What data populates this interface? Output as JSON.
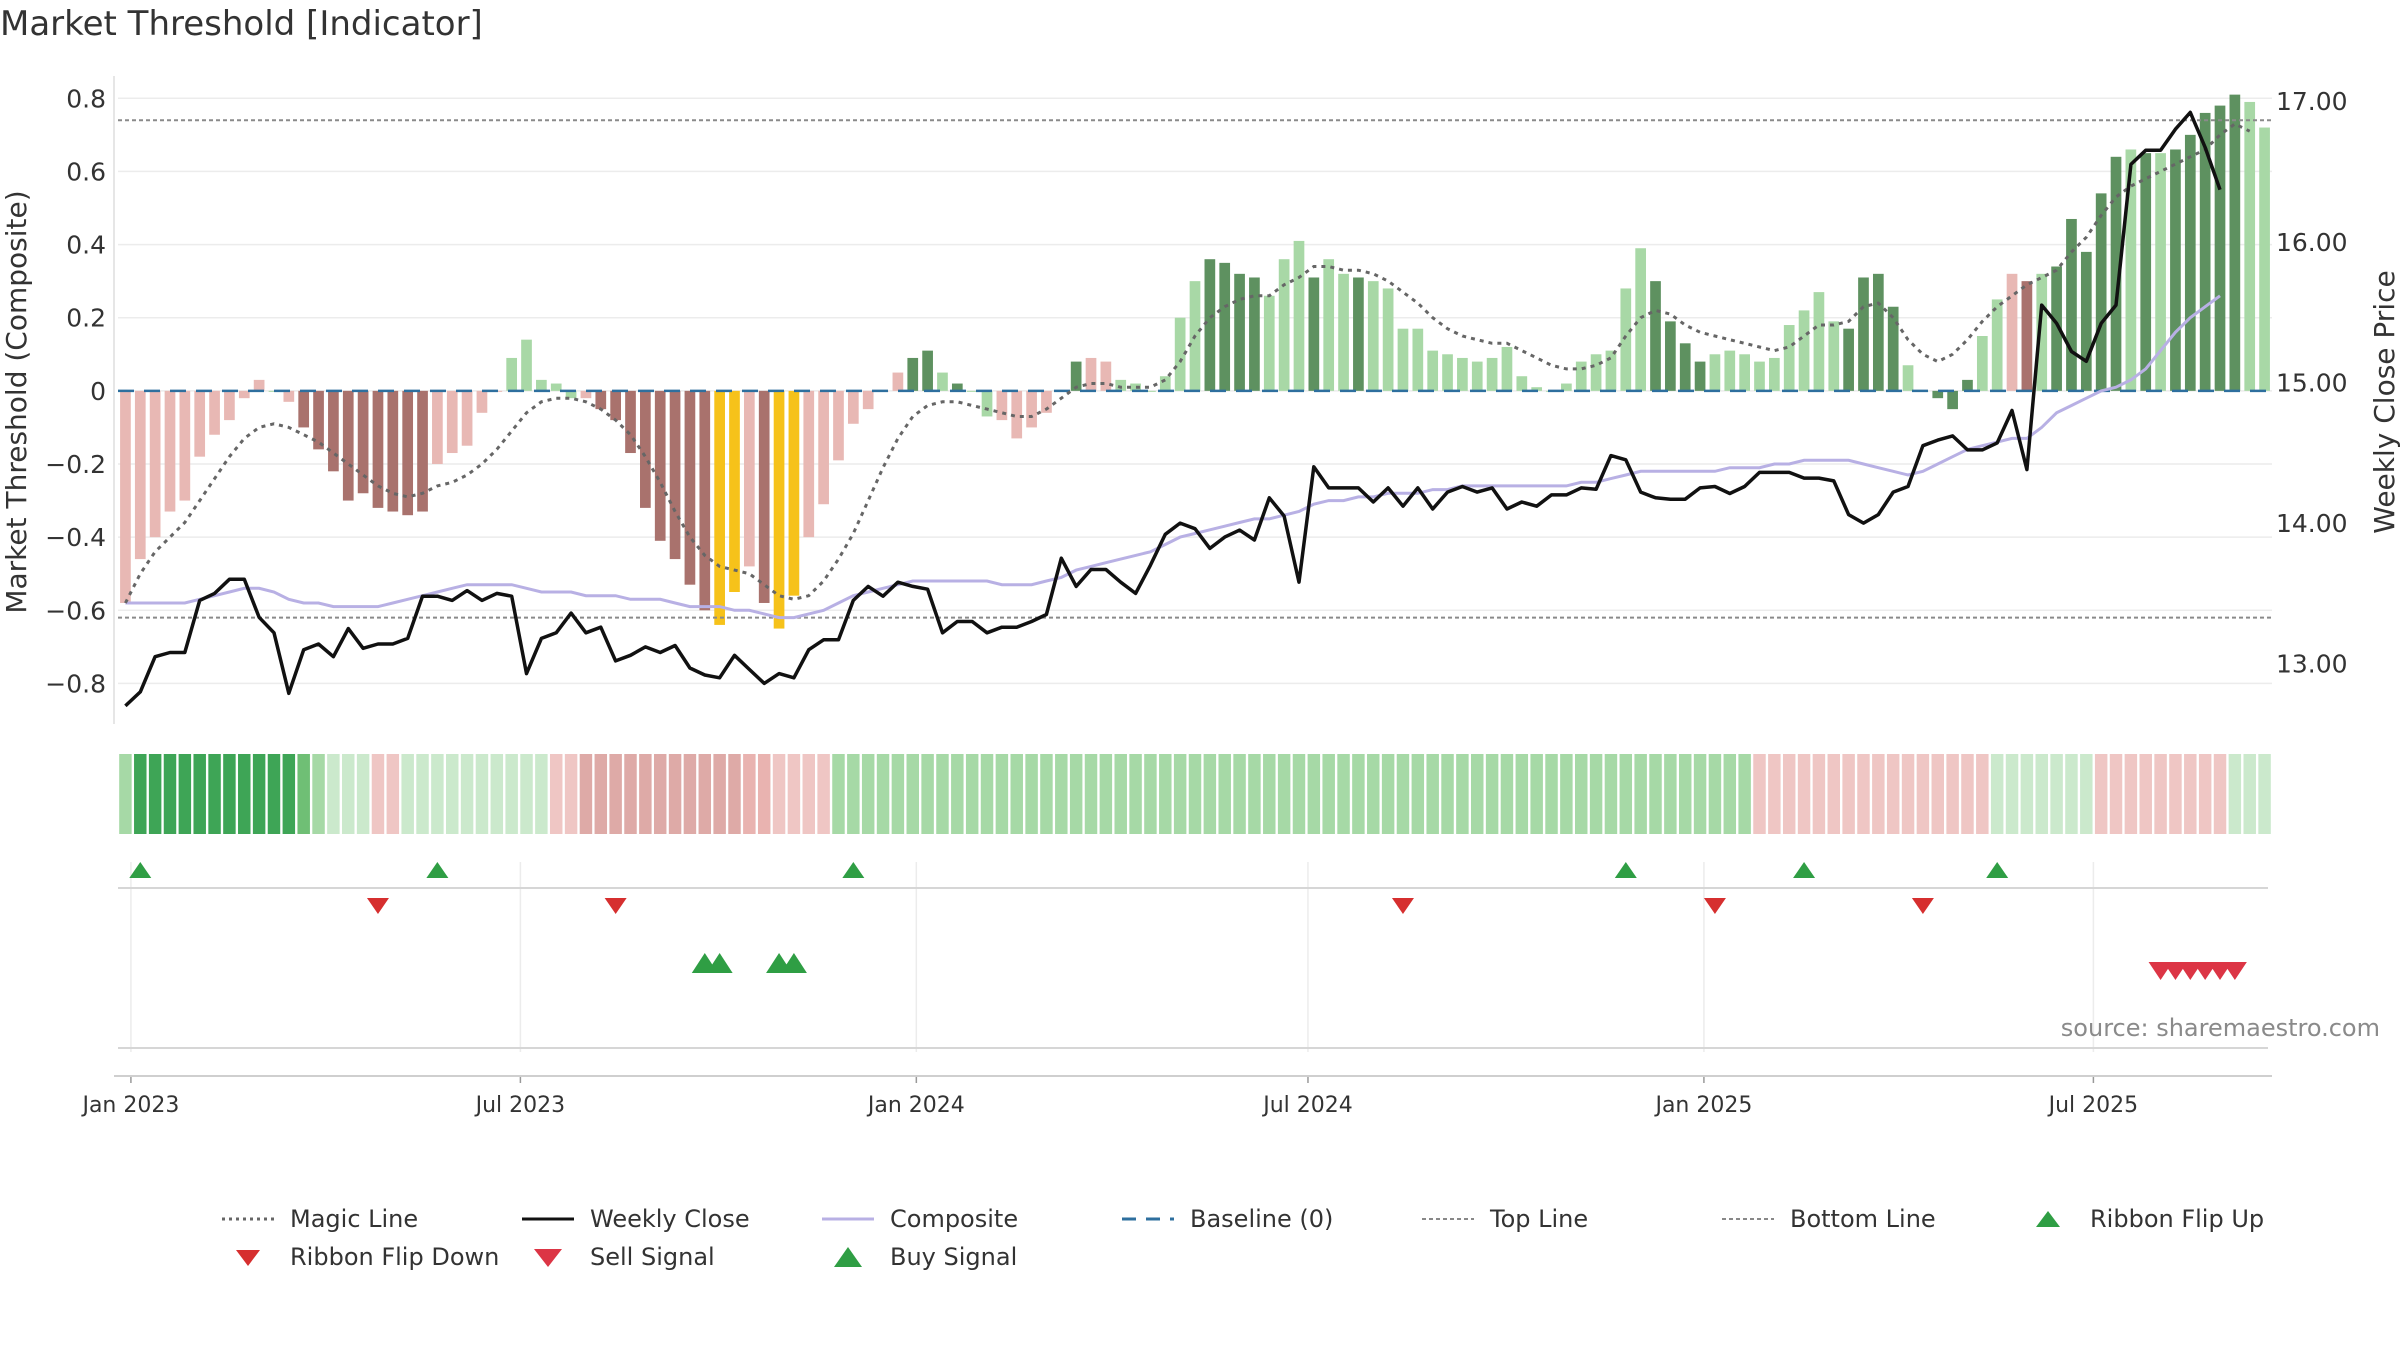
{
  "chart_data": {
    "type": "bar",
    "title": "Market Threshold [Indicator]",
    "ylabel": "Market Threshold (Composite)",
    "y2label": "Weekly Close Price",
    "ylim": [
      -0.9,
      0.85
    ],
    "y2lim": [
      12.6,
      17.15
    ],
    "yticks": [
      "0.8",
      "0.6",
      "0.4",
      "0.2",
      "0",
      "−0.2",
      "−0.4",
      "−0.6",
      "−0.8"
    ],
    "y2ticks": [
      "17.00",
      "16.00",
      "15.00",
      "14.00",
      "13.00"
    ],
    "xticks": [
      "Jan 2023",
      "Jul 2023",
      "Jan 2024",
      "Jul 2024",
      "Jan 2025",
      "Jul 2025"
    ],
    "x_start": "2022-12-26",
    "x_end": "2025-09-22",
    "top_line": 0.74,
    "bottom_line": -0.62,
    "source": "source: sharemaestro.com",
    "colors": {
      "light_green": "#a8d8a6",
      "dark_green": "#5e9160",
      "light_red": "#e8b8b4",
      "dark_red": "#a9726d",
      "gold": "#f6c21a",
      "composite": "#b8b0e4",
      "weekly_close": "#111111",
      "magic_line": "#666666",
      "baseline": "#2e6f9e",
      "buy": "#2f9e44",
      "sell": "#dc3545"
    },
    "bars": [
      -0.58,
      -0.46,
      -0.4,
      -0.33,
      -0.3,
      -0.18,
      -0.12,
      -0.08,
      -0.02,
      0.03,
      0.0,
      -0.03,
      -0.1,
      -0.16,
      -0.22,
      -0.3,
      -0.28,
      -0.32,
      -0.33,
      -0.34,
      -0.33,
      -0.2,
      -0.17,
      -0.15,
      -0.06,
      0.0,
      0.09,
      0.14,
      0.03,
      0.02,
      -0.02,
      -0.02,
      -0.05,
      -0.08,
      -0.17,
      -0.32,
      -0.41,
      -0.46,
      -0.53,
      -0.6,
      -0.64,
      -0.55,
      -0.48,
      -0.58,
      -0.65,
      -0.56,
      -0.4,
      -0.31,
      -0.19,
      -0.09,
      -0.05,
      0.0,
      0.05,
      0.09,
      0.11,
      0.05,
      0.02,
      0.0,
      -0.07,
      -0.08,
      -0.13,
      -0.1,
      -0.06,
      0.0,
      0.08,
      0.09,
      0.08,
      0.03,
      0.02,
      0.0,
      0.04,
      0.2,
      0.3,
      0.36,
      0.35,
      0.32,
      0.31,
      0.26,
      0.36,
      0.41,
      0.31,
      0.36,
      0.32,
      0.31,
      0.3,
      0.28,
      0.17,
      0.17,
      0.11,
      0.1,
      0.09,
      0.08,
      0.09,
      0.12,
      0.04,
      0.01,
      0.0,
      0.02,
      0.08,
      0.1,
      0.11,
      0.28,
      0.39,
      0.3,
      0.19,
      0.13,
      0.08,
      0.1,
      0.11,
      0.1,
      0.08,
      0.09,
      0.18,
      0.22,
      0.27,
      0.19,
      0.17,
      0.31,
      0.32,
      0.23,
      0.07,
      0.0,
      -0.02,
      -0.05,
      0.03,
      0.15,
      0.25,
      0.32,
      0.3,
      0.32,
      0.34,
      0.47,
      0.38,
      0.54,
      0.64,
      0.66,
      0.65,
      0.65,
      0.66,
      0.7,
      0.76,
      0.78,
      0.81,
      0.79,
      0.72
    ],
    "bar_colors": "RRRRRRRRRRGRNNNNNNNNNRRRRRGGGGGRNNNNNNNNYYRNYYRRRRRRRDDGDGGRRRRRDRRGGGGGGDDDDGGGDGGDGGGGGGGGGGGGGGGGGGGDDDDGGGGGGGGGDDDDGGDDDGGRNGDDDDDGDGDDDDDGGGYYYYYYY",
    "weekly_close": [
      12.7,
      12.8,
      13.05,
      13.08,
      13.08,
      13.45,
      13.5,
      13.6,
      13.6,
      13.33,
      13.22,
      12.79,
      13.1,
      13.14,
      13.05,
      13.25,
      13.11,
      13.14,
      13.14,
      13.18,
      13.48,
      13.48,
      13.45,
      13.52,
      13.45,
      13.5,
      13.48,
      12.93,
      13.18,
      13.22,
      13.36,
      13.22,
      13.26,
      13.02,
      13.06,
      13.12,
      13.08,
      13.13,
      12.97,
      12.92,
      12.9,
      13.06,
      12.96,
      12.86,
      12.93,
      12.9,
      13.1,
      13.17,
      13.17,
      13.45,
      13.55,
      13.48,
      13.58,
      13.55,
      13.53,
      13.22,
      13.3,
      13.3,
      13.22,
      13.26,
      13.26,
      13.3,
      13.35,
      13.75,
      13.55,
      13.67,
      13.67,
      13.58,
      13.5,
      13.7,
      13.92,
      14.0,
      13.96,
      13.82,
      13.9,
      13.95,
      13.88,
      14.18,
      14.05,
      13.58,
      14.4,
      14.25,
      14.25,
      14.25,
      14.15,
      14.25,
      14.12,
      14.25,
      14.1,
      14.22,
      14.26,
      14.22,
      14.25,
      14.1,
      14.15,
      14.12,
      14.2,
      14.2,
      14.25,
      14.24,
      14.48,
      14.45,
      14.22,
      14.18,
      14.17,
      14.17,
      14.25,
      14.26,
      14.21,
      14.26,
      14.36,
      14.36,
      14.36,
      14.32,
      14.32,
      14.3,
      14.06,
      14.0,
      14.06,
      14.22,
      14.26,
      14.55,
      14.59,
      14.62,
      14.52,
      14.52,
      14.57,
      14.8,
      14.38,
      15.55,
      15.42,
      15.22,
      15.15,
      15.42,
      15.55,
      16.55,
      16.65,
      16.65,
      16.8,
      16.92,
      16.67,
      16.37
    ],
    "composite": [
      -0.58,
      -0.58,
      -0.58,
      -0.58,
      -0.58,
      -0.57,
      -0.56,
      -0.55,
      -0.54,
      -0.54,
      -0.55,
      -0.57,
      -0.58,
      -0.58,
      -0.59,
      -0.59,
      -0.59,
      -0.59,
      -0.58,
      -0.57,
      -0.56,
      -0.55,
      -0.54,
      -0.53,
      -0.53,
      -0.53,
      -0.53,
      -0.54,
      -0.55,
      -0.55,
      -0.55,
      -0.56,
      -0.56,
      -0.56,
      -0.57,
      -0.57,
      -0.57,
      -0.58,
      -0.59,
      -0.59,
      -0.59,
      -0.6,
      -0.6,
      -0.61,
      -0.62,
      -0.62,
      -0.61,
      -0.6,
      -0.58,
      -0.56,
      -0.55,
      -0.54,
      -0.53,
      -0.52,
      -0.52,
      -0.52,
      -0.52,
      -0.52,
      -0.52,
      -0.53,
      -0.53,
      -0.53,
      -0.52,
      -0.51,
      -0.49,
      -0.48,
      -0.47,
      -0.46,
      -0.45,
      -0.44,
      -0.42,
      -0.4,
      -0.39,
      -0.38,
      -0.37,
      -0.36,
      -0.35,
      -0.35,
      -0.34,
      -0.33,
      -0.31,
      -0.3,
      -0.3,
      -0.29,
      -0.29,
      -0.28,
      -0.28,
      -0.28,
      -0.27,
      -0.27,
      -0.26,
      -0.26,
      -0.26,
      -0.26,
      -0.26,
      -0.26,
      -0.26,
      -0.26,
      -0.25,
      -0.25,
      -0.24,
      -0.23,
      -0.22,
      -0.22,
      -0.22,
      -0.22,
      -0.22,
      -0.22,
      -0.21,
      -0.21,
      -0.21,
      -0.2,
      -0.2,
      -0.19,
      -0.19,
      -0.19,
      -0.19,
      -0.2,
      -0.21,
      -0.22,
      -0.23,
      -0.22,
      -0.2,
      -0.18,
      -0.16,
      -0.15,
      -0.14,
      -0.13,
      -0.13,
      -0.1,
      -0.06,
      -0.04,
      -0.02,
      0.0,
      0.01,
      0.03,
      0.06,
      0.11,
      0.16,
      0.2,
      0.23,
      0.26
    ],
    "magic_line": [
      -0.58,
      -0.5,
      -0.44,
      -0.4,
      -0.36,
      -0.3,
      -0.24,
      -0.18,
      -0.13,
      -0.1,
      -0.09,
      -0.1,
      -0.12,
      -0.14,
      -0.17,
      -0.2,
      -0.23,
      -0.26,
      -0.28,
      -0.29,
      -0.28,
      -0.26,
      -0.25,
      -0.23,
      -0.2,
      -0.16,
      -0.11,
      -0.06,
      -0.03,
      -0.02,
      -0.02,
      -0.03,
      -0.05,
      -0.08,
      -0.12,
      -0.18,
      -0.25,
      -0.33,
      -0.4,
      -0.45,
      -0.48,
      -0.49,
      -0.5,
      -0.53,
      -0.56,
      -0.57,
      -0.56,
      -0.52,
      -0.46,
      -0.39,
      -0.3,
      -0.21,
      -0.13,
      -0.07,
      -0.04,
      -0.03,
      -0.03,
      -0.04,
      -0.05,
      -0.06,
      -0.07,
      -0.07,
      -0.05,
      -0.02,
      0.01,
      0.02,
      0.02,
      0.01,
      0.01,
      0.01,
      0.03,
      0.08,
      0.15,
      0.2,
      0.23,
      0.25,
      0.26,
      0.26,
      0.29,
      0.31,
      0.34,
      0.34,
      0.33,
      0.33,
      0.32,
      0.3,
      0.27,
      0.24,
      0.2,
      0.17,
      0.15,
      0.14,
      0.13,
      0.13,
      0.11,
      0.09,
      0.07,
      0.06,
      0.06,
      0.07,
      0.09,
      0.15,
      0.2,
      0.22,
      0.21,
      0.18,
      0.16,
      0.15,
      0.14,
      0.13,
      0.12,
      0.11,
      0.12,
      0.15,
      0.18,
      0.18,
      0.19,
      0.23,
      0.24,
      0.2,
      0.14,
      0.1,
      0.08,
      0.1,
      0.14,
      0.19,
      0.23,
      0.26,
      0.29,
      0.31,
      0.33,
      0.38,
      0.42,
      0.48,
      0.53,
      0.56,
      0.58,
      0.6,
      0.62,
      0.64,
      0.66,
      0.7,
      0.73,
      0.71
    ],
    "ribbon": "24444444444432111RR1111111111RRTTTTTTTTTTTSSRRRR22222222222222222222222222222222222222222222222222222222222222RRRRRRRRRRRRRRRR1111111RRRRRRRRR11111111RRRRR222222222222222222",
    "ribbon_flip_up": [
      1,
      21,
      49,
      101,
      113,
      126
    ],
    "ribbon_flip_down": [
      17,
      33,
      86,
      107,
      121
    ],
    "buy_signals": [
      39,
      40,
      44,
      45
    ],
    "sell_signals": [
      137,
      138,
      139,
      140,
      141,
      142
    ]
  },
  "legend": {
    "magic_line": "Magic Line",
    "weekly_close": "Weekly Close",
    "composite": "Composite",
    "baseline": "Baseline (0)",
    "top_line": "Top Line",
    "bottom_line": "Bottom Line",
    "ribbon_flip_up": "Ribbon Flip Up",
    "ribbon_flip_down": "Ribbon Flip Down",
    "sell_signal": "Sell Signal",
    "buy_signal": "Buy Signal"
  }
}
